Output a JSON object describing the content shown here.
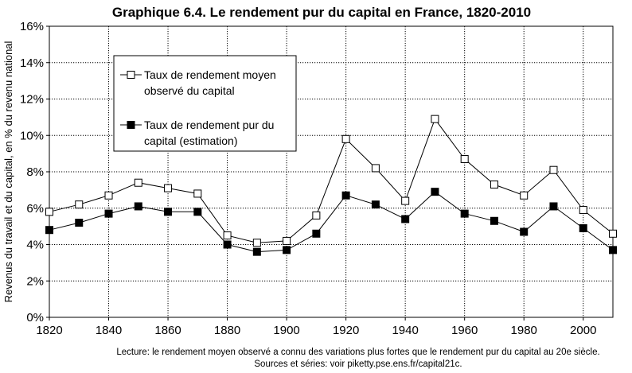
{
  "chart_data": {
    "type": "line",
    "title": "Graphique 6.4. Le rendement pur du capital en France, 1820-2010",
    "ylabel": "Revenus du travail et du capital, en % du revenu national",
    "xlabel": "",
    "x": [
      1820,
      1830,
      1840,
      1850,
      1860,
      1870,
      1880,
      1890,
      1900,
      1910,
      1920,
      1930,
      1940,
      1950,
      1960,
      1970,
      1980,
      1990,
      2000,
      2010
    ],
    "xlim": [
      1820,
      2010
    ],
    "ylim": [
      0,
      16
    ],
    "x_ticks": [
      1820,
      1840,
      1860,
      1880,
      1900,
      1920,
      1940,
      1960,
      1980,
      2000
    ],
    "x_tick_labels": [
      "1820",
      "1840",
      "1860",
      "1880",
      "1900",
      "1920",
      "1940",
      "1960",
      "1980",
      "2000"
    ],
    "y_ticks": [
      0,
      2,
      4,
      6,
      8,
      10,
      12,
      14,
      16
    ],
    "y_tick_labels": [
      "0%",
      "2%",
      "4%",
      "6%",
      "8%",
      "10%",
      "12%",
      "14%",
      "16%"
    ],
    "grid": true,
    "legend_position": "top-left",
    "series": [
      {
        "name_lines": [
          "Taux de rendement moyen",
          "observé du capital"
        ],
        "marker": "open-square",
        "color": "#000000",
        "values": [
          5.8,
          6.2,
          6.7,
          7.4,
          7.1,
          6.8,
          4.5,
          4.1,
          4.2,
          5.6,
          9.8,
          8.2,
          6.4,
          10.9,
          8.7,
          7.3,
          6.7,
          8.1,
          5.9,
          4.6
        ]
      },
      {
        "name_lines": [
          "Taux de rendement pur du",
          "capital (estimation)"
        ],
        "marker": "filled-square",
        "color": "#000000",
        "values": [
          4.8,
          5.2,
          5.7,
          6.1,
          5.8,
          5.8,
          4.0,
          3.6,
          3.7,
          4.6,
          6.7,
          6.2,
          5.4,
          6.9,
          5.7,
          5.3,
          4.7,
          6.1,
          4.9,
          3.7
        ]
      }
    ],
    "notes": [
      "Lecture: le rendement moyen observé a connu des variations plus fortes que le rendement pur du capital au 20e siècle.",
      "Sources et séries: voir piketty.pse.ens.fr/capital21c."
    ]
  }
}
